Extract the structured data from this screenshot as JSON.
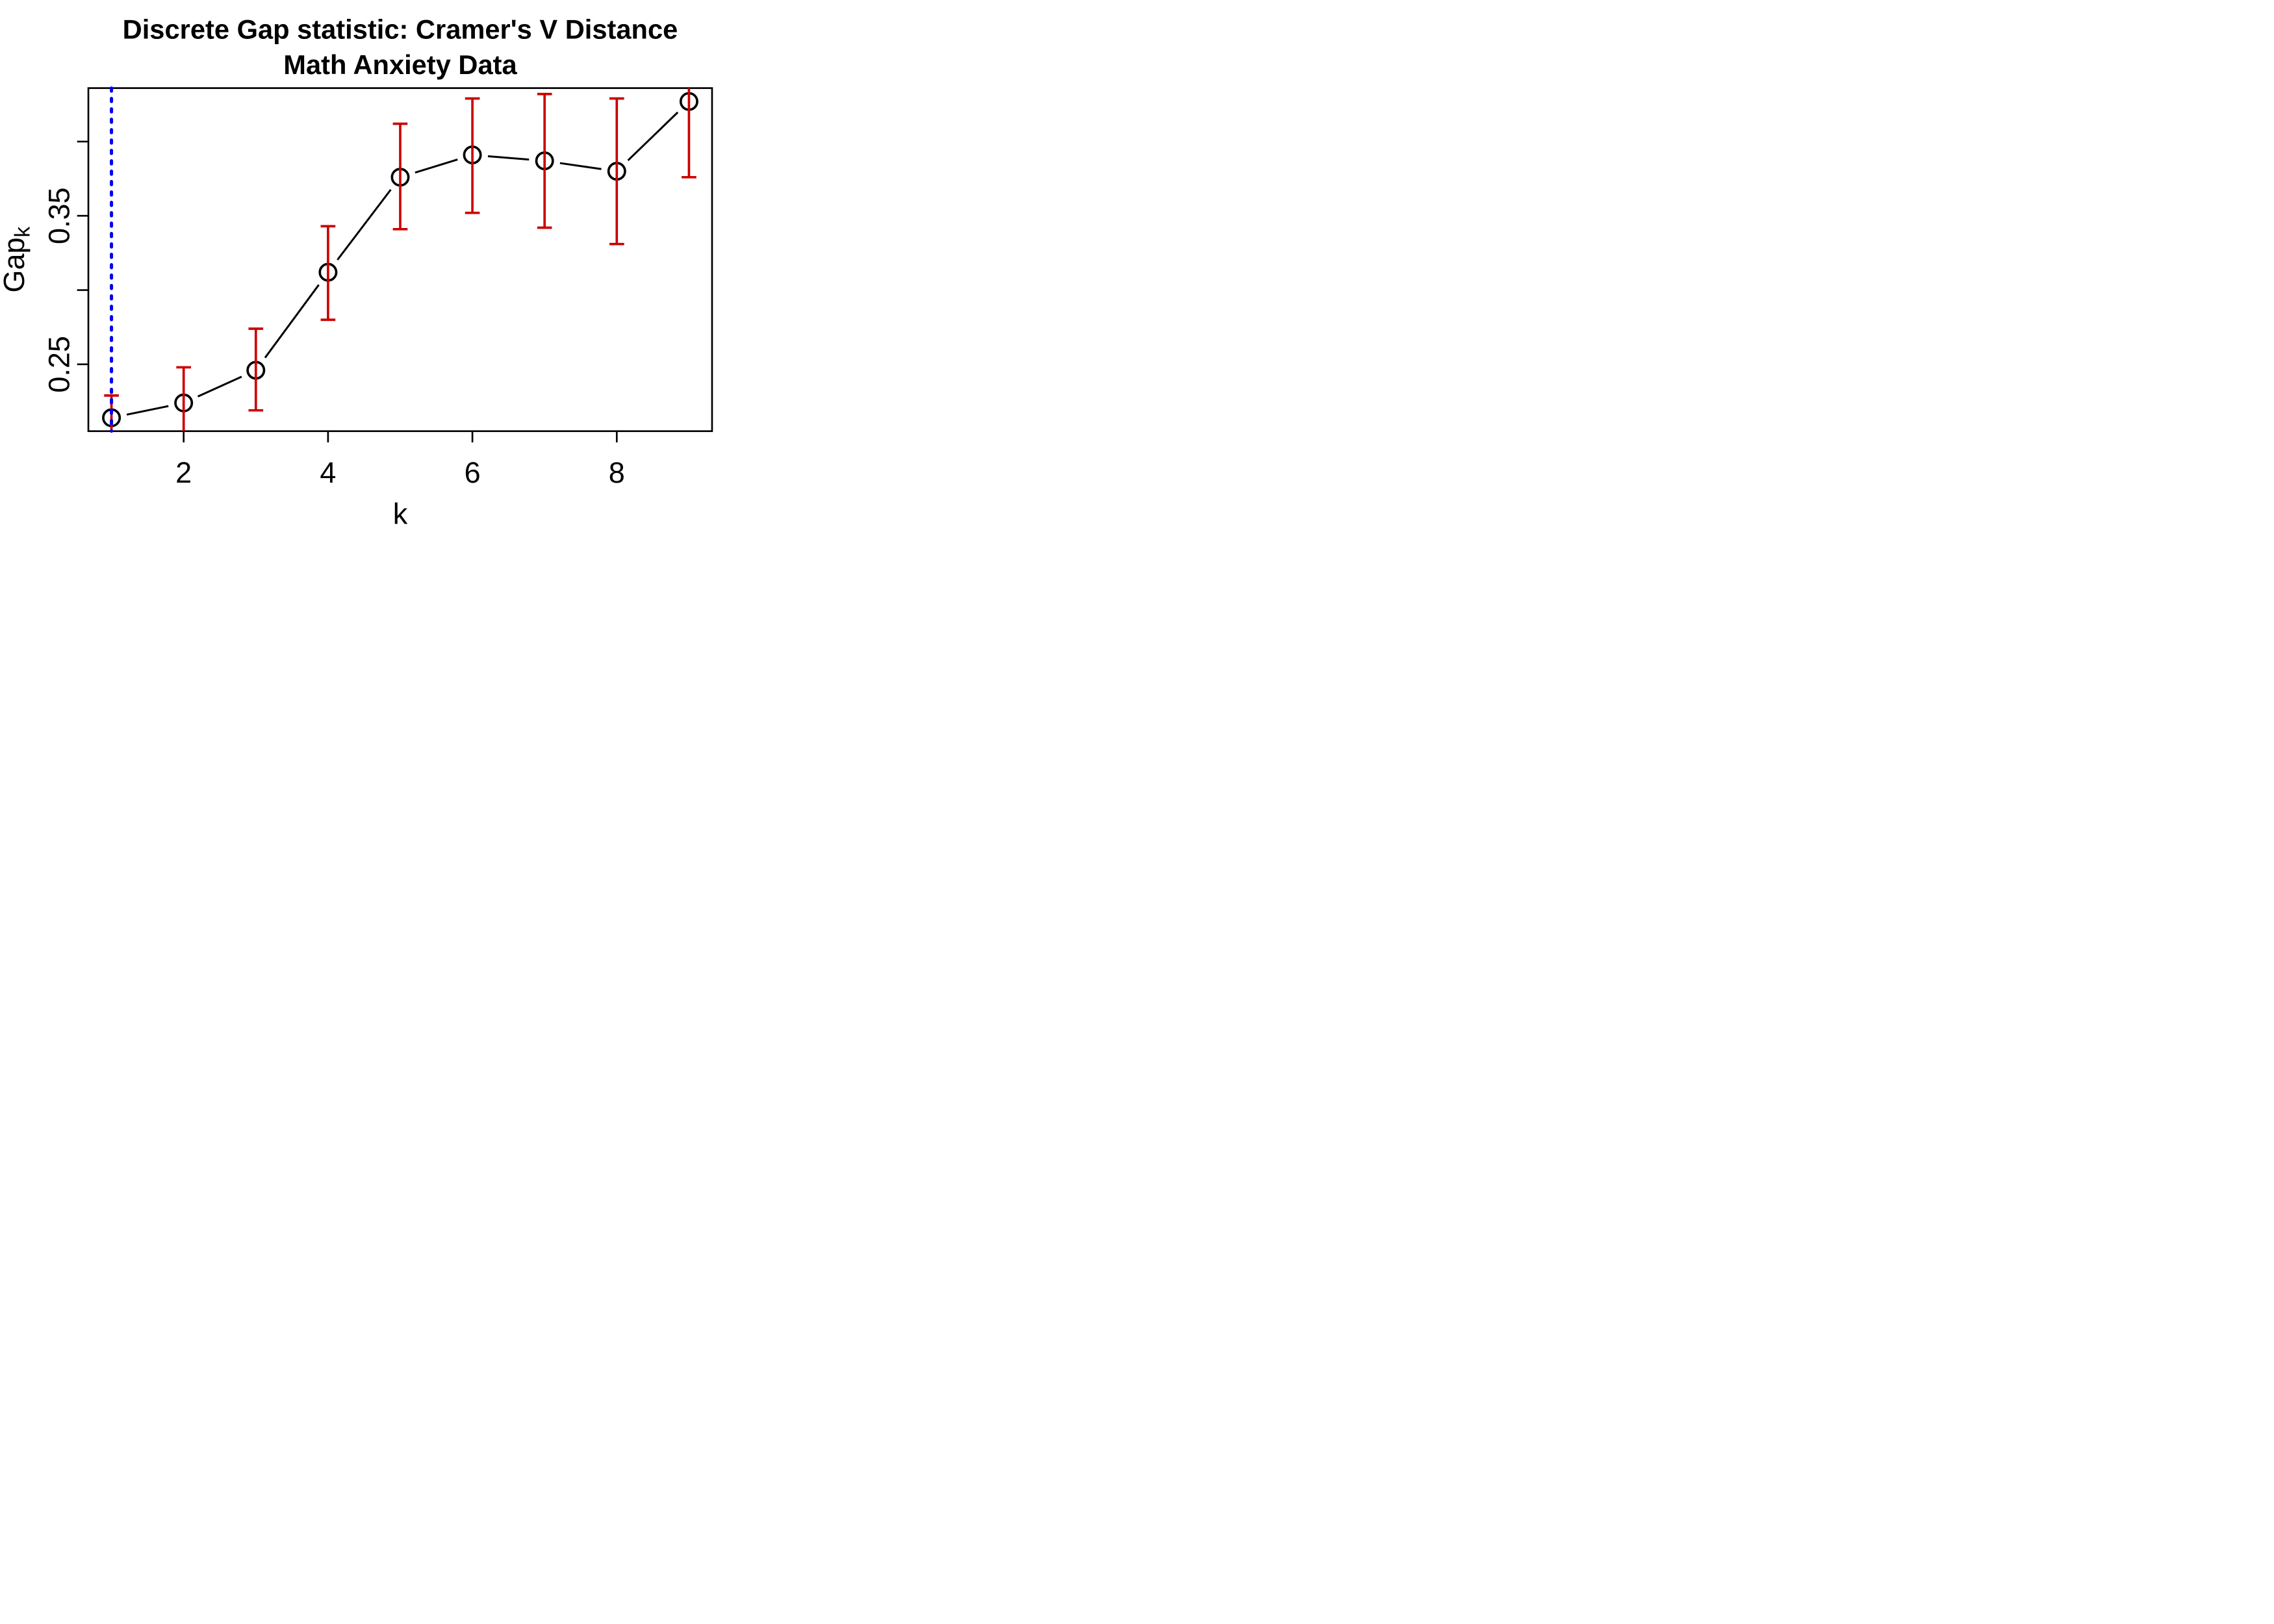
{
  "chart_data": {
    "type": "line",
    "title": "Discrete Gap statistic: Cramer's V Distance",
    "subtitle": "Math Anxiety Data",
    "xlabel": "k",
    "ylabel_base": "Gap",
    "ylabel_sub": "k",
    "marker": "open-circle",
    "grid": false,
    "legend": "none",
    "x": [
      1,
      2,
      3,
      4,
      5,
      6,
      7,
      8,
      9
    ],
    "series": [
      {
        "name": "Gap statistic with standard-error bars",
        "values": [
          0.214,
          0.224,
          0.246,
          0.312,
          0.376,
          0.391,
          0.387,
          0.38,
          0.427
        ],
        "err_lo": [
          0.2,
          0.201,
          0.219,
          0.28,
          0.341,
          0.352,
          0.342,
          0.331,
          0.376
        ],
        "err_hi": [
          0.229,
          0.248,
          0.274,
          0.343,
          0.412,
          0.429,
          0.432,
          0.429,
          0.478
        ]
      }
    ],
    "xlim": [
      0.68,
      9.32
    ],
    "ylim": [
      0.205,
      0.436
    ],
    "xticks": [
      2,
      4,
      6,
      8
    ],
    "xtick_labels": [
      "2",
      "4",
      "6",
      "8"
    ],
    "yticks": [
      0.25,
      0.3,
      0.35,
      0.4
    ],
    "ytick_labels": [
      "0.25",
      "",
      "0.35",
      ""
    ],
    "vline_x": 1,
    "colors": {
      "points_and_line": "#000000",
      "error_bars": "#CC0000",
      "vline": "#0000EE",
      "background": "#FFFFFF",
      "box": "#000000"
    }
  }
}
